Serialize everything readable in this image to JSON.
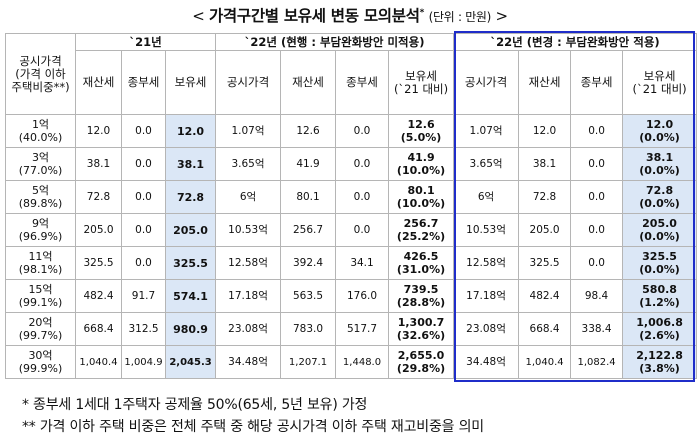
{
  "title": {
    "prefix": "<",
    "main": "가격구간별 보유세 변동 모의분석",
    "star": "*",
    "unit": "(단위 : 만원)",
    "suffix": ">"
  },
  "groups": {
    "y21": "`21년",
    "y22_current": "`22년 (현행 : 부담완화방안 미적용)",
    "y22_changed": "`22년 (변경 : 부담완화방안 적용)"
  },
  "headers": {
    "price_col": "공시가격\n(가격 이하\n주택비중**)",
    "property_tax": "재산세",
    "comprehensive_tax": "종부세",
    "holding_tax": "보유세",
    "official_price": "공시가격",
    "holding_tax_vs21": "보유세\n(`21 대비)"
  },
  "rows": [
    {
      "price": "1억",
      "share": "(40.0%)",
      "p21": "12.0",
      "c21": "0.0",
      "h21": "12.0",
      "op_a": "1.07억",
      "p_a": "12.6",
      "c_a": "0.0",
      "h_a": "12.6",
      "r_a": "(5.0%)",
      "op_b": "1.07억",
      "p_b": "12.0",
      "c_b": "0.0",
      "h_b": "12.0",
      "r_b": "(0.0%)"
    },
    {
      "price": "3억",
      "share": "(77.0%)",
      "p21": "38.1",
      "c21": "0.0",
      "h21": "38.1",
      "op_a": "3.65억",
      "p_a": "41.9",
      "c_a": "0.0",
      "h_a": "41.9",
      "r_a": "(10.0%)",
      "op_b": "3.65억",
      "p_b": "38.1",
      "c_b": "0.0",
      "h_b": "38.1",
      "r_b": "(0.0%)"
    },
    {
      "price": "5억",
      "share": "(89.8%)",
      "p21": "72.8",
      "c21": "0.0",
      "h21": "72.8",
      "op_a": "6억",
      "p_a": "80.1",
      "c_a": "0.0",
      "h_a": "80.1",
      "r_a": "(10.0%)",
      "op_b": "6억",
      "p_b": "72.8",
      "c_b": "0.0",
      "h_b": "72.8",
      "r_b": "(0.0%)"
    },
    {
      "price": "9억",
      "share": "(96.9%)",
      "p21": "205.0",
      "c21": "0.0",
      "h21": "205.0",
      "op_a": "10.53억",
      "p_a": "256.7",
      "c_a": "0.0",
      "h_a": "256.7",
      "r_a": "(25.2%)",
      "op_b": "10.53억",
      "p_b": "205.0",
      "c_b": "0.0",
      "h_b": "205.0",
      "r_b": "(0.0%)"
    },
    {
      "price": "11억",
      "share": "(98.1%)",
      "p21": "325.5",
      "c21": "0.0",
      "h21": "325.5",
      "op_a": "12.58억",
      "p_a": "392.4",
      "c_a": "34.1",
      "h_a": "426.5",
      "r_a": "(31.0%)",
      "op_b": "12.58억",
      "p_b": "325.5",
      "c_b": "0.0",
      "h_b": "325.5",
      "r_b": "(0.0%)"
    },
    {
      "price": "15억",
      "share": "(99.1%)",
      "p21": "482.4",
      "c21": "91.7",
      "h21": "574.1",
      "op_a": "17.18억",
      "p_a": "563.5",
      "c_a": "176.0",
      "h_a": "739.5",
      "r_a": "(28.8%)",
      "op_b": "17.18억",
      "p_b": "482.4",
      "c_b": "98.4",
      "h_b": "580.8",
      "r_b": "(1.2%)"
    },
    {
      "price": "20억",
      "share": "(99.7%)",
      "p21": "668.4",
      "c21": "312.5",
      "h21": "980.9",
      "op_a": "23.08억",
      "p_a": "783.0",
      "c_a": "517.7",
      "h_a": "1,300.7",
      "r_a": "(32.6%)",
      "op_b": "23.08억",
      "p_b": "668.4",
      "c_b": "338.4",
      "h_b": "1,006.8",
      "r_b": "(2.6%)"
    },
    {
      "price": "30억",
      "share": "(99.9%)",
      "p21": "1,040.4",
      "c21": "1,004.9",
      "h21": "2,045.3",
      "op_a": "34.48억",
      "p_a": "1,207.1",
      "c_a": "1,448.0",
      "h_a": "2,655.0",
      "r_a": "(29.8%)",
      "op_b": "34.48억",
      "p_b": "1,040.4",
      "c_b": "1,082.4",
      "h_b": "2,122.8",
      "r_b": "(3.8%)"
    }
  ],
  "notes": {
    "note1": "* 종부세 1세대 1주택자 공제율 50%(65세, 5년 보유) 가정",
    "note2": "** 가격 이하 주택 비중은 전체 주택 중 해당 공시가격 이하 주택 재고비중을 의미"
  }
}
